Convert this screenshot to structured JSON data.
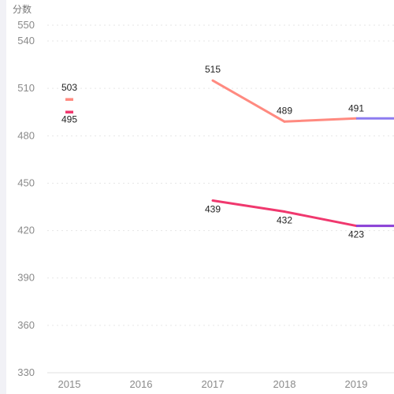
{
  "chart_data": {
    "type": "line",
    "ylabel": "分数",
    "ylim": [
      330,
      550
    ],
    "y_ticks": [
      330,
      360,
      390,
      420,
      450,
      480,
      510,
      540,
      550
    ],
    "categories": [
      "2015",
      "2016",
      "2017",
      "2018",
      "2019"
    ],
    "grid": "horizontal dotted",
    "series": [
      {
        "values": [
          503,
          null,
          515,
          489,
          491
        ],
        "color": "#ff8a80",
        "tail_color": "#8d7cf0"
      },
      {
        "values": [
          495,
          null,
          439,
          432,
          423
        ],
        "color": "#f0386e",
        "tail_color": "#8a3fd6"
      }
    ]
  }
}
